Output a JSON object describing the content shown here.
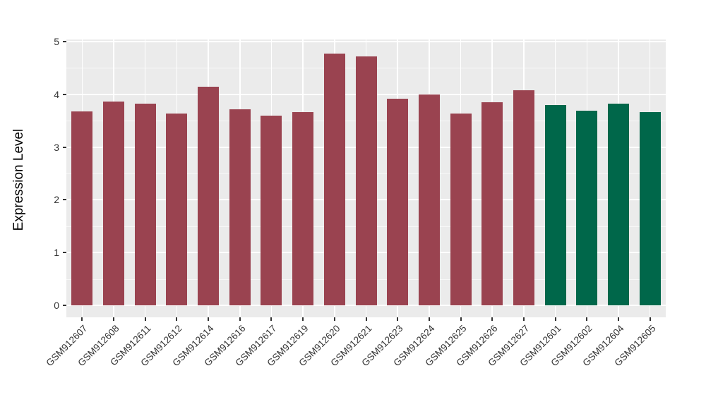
{
  "chart_data": {
    "type": "bar",
    "title": "",
    "xlabel": "",
    "ylabel": "Expression Level",
    "ylim": [
      0,
      5
    ],
    "yticks": [
      "0",
      "1",
      "2",
      "3",
      "4",
      "5"
    ],
    "grid": "horizontal major at integers, horizontal minor at halves, vertical major at category centers",
    "legend_position": "none",
    "panel_background": "#EBEBEB",
    "gridline_color": "#FFFFFF",
    "tick_color": "#333333",
    "categories": [
      "GSM912607",
      "GSM912608",
      "GSM912611",
      "GSM912612",
      "GSM912614",
      "GSM912616",
      "GSM912617",
      "GSM912619",
      "GSM912620",
      "GSM912621",
      "GSM912623",
      "GSM912624",
      "GSM912625",
      "GSM912626",
      "GSM912627",
      "GSM912601",
      "GSM912602",
      "GSM912604",
      "GSM912605"
    ],
    "values": [
      3.67,
      3.87,
      3.83,
      3.63,
      4.15,
      3.72,
      3.6,
      3.66,
      4.77,
      4.72,
      3.92,
      4.0,
      3.64,
      3.85,
      4.08,
      3.8,
      3.69,
      3.83,
      3.66
    ],
    "groups": [
      "maroon",
      "maroon",
      "maroon",
      "maroon",
      "maroon",
      "maroon",
      "maroon",
      "maroon",
      "maroon",
      "maroon",
      "maroon",
      "maroon",
      "maroon",
      "maroon",
      "maroon",
      "green",
      "green",
      "green",
      "green"
    ],
    "group_colors": {
      "maroon": "#9A4350",
      "green": "#00674A"
    }
  }
}
